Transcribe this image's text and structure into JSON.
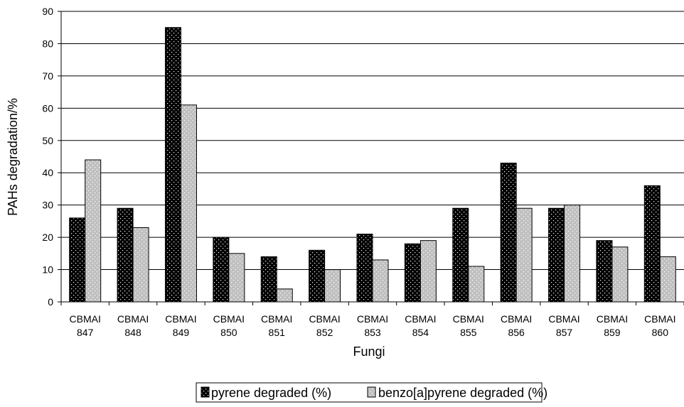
{
  "chart_data": {
    "type": "bar",
    "title": "",
    "xlabel": "Fungi",
    "ylabel": "PAHs degradation/%",
    "ylim": [
      0,
      90
    ],
    "ytick_step": 10,
    "grid": "horizontal major gridlines",
    "legend_position": "bottom",
    "categories": [
      [
        "CBMAI",
        "847"
      ],
      [
        "CBMAI",
        "848"
      ],
      [
        "CBMAI",
        "849"
      ],
      [
        "CBMAI",
        "850"
      ],
      [
        "CBMAI",
        "851"
      ],
      [
        "CBMAI",
        "852"
      ],
      [
        "CBMAI",
        "853"
      ],
      [
        "CBMAI",
        "854"
      ],
      [
        "CBMAI",
        "855"
      ],
      [
        "CBMAI",
        "856"
      ],
      [
        "CBMAI",
        "857"
      ],
      [
        "CBMAI",
        "859"
      ],
      [
        "CBMAI",
        "860"
      ]
    ],
    "series": [
      {
        "name": "pyrene degraded (%)",
        "color": "#000000",
        "dot_color": "#ffffff",
        "values": [
          26,
          29,
          85,
          20,
          14,
          16,
          21,
          18,
          29,
          43,
          29,
          19,
          36
        ]
      },
      {
        "name": "benzo[a]pyrene degraded (%)",
        "color": "#c0c0c0",
        "dot_color": "#ffffff",
        "values": [
          44,
          23,
          61,
          15,
          4,
          10,
          13,
          19,
          11,
          29,
          30,
          17,
          14
        ]
      }
    ]
  }
}
